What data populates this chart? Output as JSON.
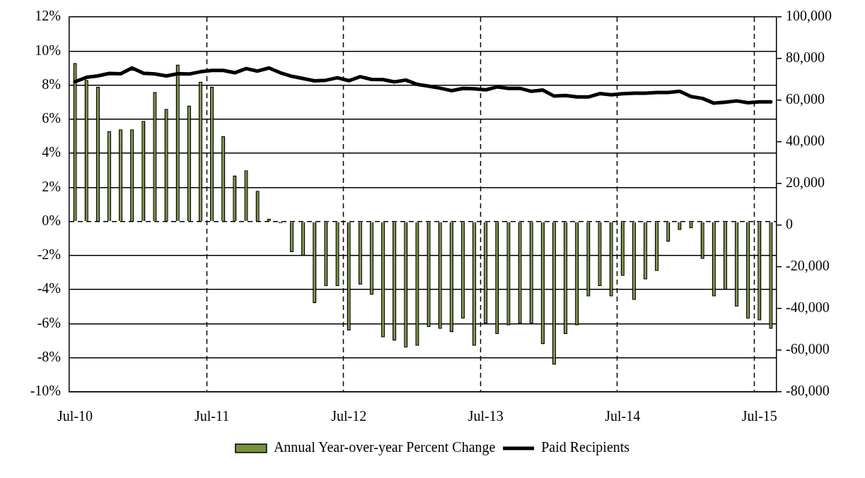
{
  "chart_data": {
    "type": "bar",
    "categories": [
      "Jul-10",
      null,
      null,
      null,
      null,
      null,
      null,
      null,
      null,
      null,
      null,
      null,
      "Jul-11",
      null,
      null,
      null,
      null,
      null,
      null,
      null,
      null,
      null,
      null,
      null,
      "Jul-12",
      null,
      null,
      null,
      null,
      null,
      null,
      null,
      null,
      null,
      null,
      null,
      "Jul-13",
      null,
      null,
      null,
      null,
      null,
      null,
      null,
      null,
      null,
      null,
      null,
      "Jul-14",
      null,
      null,
      null,
      null,
      null,
      null,
      null,
      null,
      null,
      null,
      null,
      "Jul-15",
      null
    ],
    "series": [
      {
        "name": "Annual Year-over-year Percent Change",
        "color": "#76923c",
        "values": [
          9.3,
          8.3,
          7.9,
          5.3,
          5.4,
          5.4,
          5.9,
          7.6,
          6.6,
          9.2,
          6.8,
          8.2,
          7.9,
          5.0,
          2.7,
          3.0,
          1.8,
          0.15,
          -0.1,
          -1.8,
          -2.0,
          -4.8,
          -3.8,
          -3.8,
          -6.4,
          -3.7,
          -4.3,
          -6.8,
          -7.0,
          -7.4,
          -7.3,
          -6.2,
          -6.3,
          -6.5,
          -5.7,
          -7.3,
          -6.0,
          -6.6,
          -6.1,
          -6.0,
          -6.0,
          -7.2,
          -8.4,
          -6.6,
          -6.1,
          -4.4,
          -3.8,
          -4.4,
          -3.2,
          -4.6,
          -3.4,
          -2.9,
          -1.2,
          -0.5,
          -0.4,
          -2.2,
          -4.4,
          -4.0,
          -5.0,
          -5.7,
          -5.8,
          -6.3
        ]
      },
      {
        "name": "Paid Recipients",
        "type": "line",
        "axis": "y2",
        "color": "#000000",
        "values": [
          68900,
          71000,
          71700,
          72900,
          72700,
          75500,
          73000,
          72600,
          71700,
          72700,
          72600,
          73700,
          74300,
          74300,
          73200,
          75200,
          74000,
          75500,
          73200,
          71500,
          70400,
          69300,
          69600,
          70800,
          69400,
          71300,
          70000,
          69900,
          68800,
          69700,
          67600,
          66800,
          65800,
          64600,
          65700,
          65500,
          65000,
          66400,
          65700,
          65700,
          64300,
          64900,
          62000,
          62300,
          61600,
          61600,
          63200,
          62600,
          63100,
          63400,
          63400,
          63700,
          63700,
          64300,
          61800,
          60900,
          58600,
          59100,
          59700,
          58800,
          59200,
          59200
        ]
      }
    ],
    "ylim": [
      -10,
      12
    ],
    "yticks": [
      {
        "value": -10,
        "label": "-10%"
      },
      {
        "value": -8,
        "label": "-8%"
      },
      {
        "value": -6,
        "label": "-6%"
      },
      {
        "value": -4,
        "label": "-4%"
      },
      {
        "value": -2,
        "label": "-2%"
      },
      {
        "value": 0,
        "label": "0%"
      },
      {
        "value": 2,
        "label": "2%"
      },
      {
        "value": 4,
        "label": "4%"
      },
      {
        "value": 6,
        "label": "6%"
      },
      {
        "value": 8,
        "label": "8%"
      },
      {
        "value": 10,
        "label": "10%"
      },
      {
        "value": 12,
        "label": "12%"
      }
    ],
    "y2lim": [
      -80000,
      100000
    ],
    "y2ticks": [
      {
        "value": -80000,
        "label": "-80,000"
      },
      {
        "value": -60000,
        "label": "-60,000"
      },
      {
        "value": -40000,
        "label": "-40,000"
      },
      {
        "value": -20000,
        "label": "-20,000"
      },
      {
        "value": 0,
        "label": "0"
      },
      {
        "value": 20000,
        "label": "20,000"
      },
      {
        "value": 40000,
        "label": "40,000"
      },
      {
        "value": 60000,
        "label": "60,000"
      },
      {
        "value": 80000,
        "label": "80,000"
      },
      {
        "value": 100000,
        "label": "100,000"
      }
    ],
    "grid": true,
    "legend": "bottom",
    "marker": "none"
  }
}
